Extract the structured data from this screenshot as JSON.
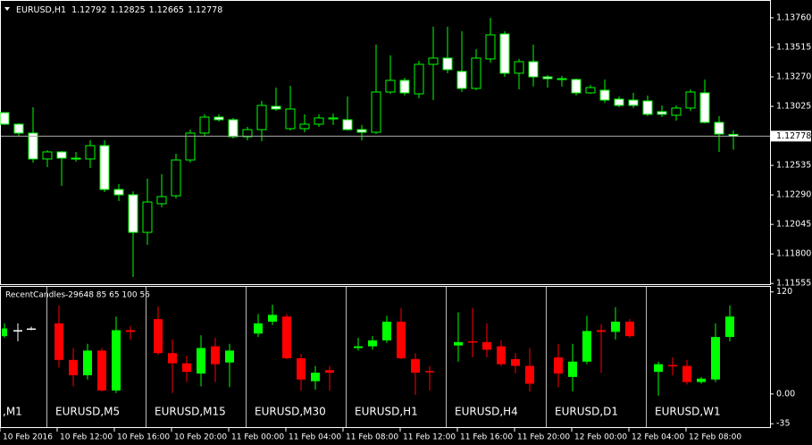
{
  "header": {
    "symbol": "EURUSD,H1",
    "values": [
      1.12792,
      1.12825,
      1.12665,
      1.12778
    ]
  },
  "chart_data": [
    {
      "type": "candlestick",
      "open": [
        1.12973,
        1.12877,
        1.12803,
        1.12588,
        1.12647,
        1.12588,
        1.12588,
        1.12699,
        1.12335,
        1.12291,
        1.11979,
        1.12217,
        1.12283,
        1.1258,
        1.12803,
        1.12936,
        1.12914,
        1.12773,
        1.12832,
        1.13025,
        1.1284,
        1.1284,
        1.12877,
        1.12921,
        1.12914,
        1.12832,
        1.1281,
        1.13144,
        1.13241,
        1.13129,
        1.13374,
        1.13426,
        1.13315,
        1.13174,
        1.13419,
        1.13626,
        1.133,
        1.13396,
        1.1327,
        1.13255,
        1.13248,
        1.13137,
        1.13159,
        1.13085,
        1.13077,
        1.1307,
        1.12981,
        1.12951,
        1.13011,
        1.13137,
        1.12892,
        1.12792
      ],
      "high": [
        1.12973,
        1.12884,
        1.13018,
        1.12662,
        1.12654,
        1.12647,
        1.12743,
        1.12743,
        1.1238,
        1.1232,
        1.12424,
        1.12462,
        1.12632,
        1.12832,
        1.12959,
        1.12959,
        1.12929,
        1.12855,
        1.1307,
        1.13181,
        1.13196,
        1.12959,
        1.12959,
        1.12966,
        1.13107,
        1.1287,
        1.13537,
        1.13448,
        1.13263,
        1.13404,
        1.13686,
        1.13686,
        1.13649,
        1.135,
        1.1376,
        1.13649,
        1.13419,
        1.13537,
        1.13285,
        1.13278,
        1.13255,
        1.13204,
        1.13248,
        1.13107,
        1.13137,
        1.13115,
        1.13033,
        1.13033,
        1.13166,
        1.13248,
        1.12944,
        1.12825
      ],
      "low": [
        1.1287,
        1.1278,
        1.12558,
        1.12521,
        1.12365,
        1.12566,
        1.12514,
        1.12313,
        1.12239,
        1.11608,
        1.11875,
        1.12187,
        1.12261,
        1.12558,
        1.1278,
        1.12899,
        1.12758,
        1.12743,
        1.12736,
        1.12988,
        1.12825,
        1.1281,
        1.12855,
        1.1287,
        1.12825,
        1.12743,
        1.12795,
        1.13129,
        1.13115,
        1.13092,
        1.13077,
        1.133,
        1.13144,
        1.13159,
        1.13389,
        1.1327,
        1.13166,
        1.13189,
        1.13181,
        1.13189,
        1.13115,
        1.13129,
        1.13055,
        1.13018,
        1.13011,
        1.12944,
        1.12936,
        1.12907,
        1.12988,
        1.12884,
        1.12647,
        1.12665
      ],
      "close": [
        1.12877,
        1.12803,
        1.12588,
        1.12647,
        1.12595,
        1.12595,
        1.12699,
        1.12335,
        1.12291,
        1.11979,
        1.12231,
        1.12276,
        1.1258,
        1.12803,
        1.12936,
        1.12914,
        1.12773,
        1.12832,
        1.13033,
        1.13003,
        1.13003,
        1.12877,
        1.12929,
        1.12929,
        1.12832,
        1.1281,
        1.13144,
        1.13241,
        1.13137,
        1.13374,
        1.13426,
        1.1333,
        1.13174,
        1.13426,
        1.13619,
        1.133,
        1.13396,
        1.1327,
        1.13255,
        1.13248,
        1.13137,
        1.13181,
        1.13077,
        1.13033,
        1.13033,
        1.12959,
        1.12959,
        1.13011,
        1.13144,
        1.12892,
        1.12795,
        1.12778
      ],
      "ylim": [
        1.11549,
        1.13908
      ],
      "yticks": [
        {
          "value": 1.1376,
          "label": "1.13760"
        },
        1.13515,
        {
          "value": 1.1327,
          "label": "1.13270"
        },
        1.13025,
        1.12535,
        {
          "value": 1.1229,
          "label": "1.12290"
        },
        1.12045,
        {
          "value": 1.118,
          "label": "1.11800"
        },
        1.11555
      ],
      "current_price": 1.12778,
      "xlabels": [
        "10 Feb 2016",
        "10 Feb 12:00",
        "10 Feb 16:00",
        "10 Feb 20:00",
        "11 Feb 00:00",
        "11 Feb 04:00",
        "11 Feb 08:00",
        "11 Feb 12:00",
        "11 Feb 16:00",
        "11 Feb 20:00",
        "12 Feb 00:00",
        "12 Feb 04:00",
        "12 Feb 08:00"
      ]
    },
    {
      "type": "candlestick",
      "title": "RecentCandles-29648 85 65 100 56",
      "ylim": [
        -39,
        127
      ],
      "yticks": [
        120,
        {
          "value": 0,
          "label": "0.00"
        },
        -35
      ],
      "panels": [
        {
          "name": ",M1",
          "colors": [
            "#00ff00",
            "#ffffff",
            "#ffffff"
          ],
          "open": [
            68,
            75,
            77
          ],
          "high": [
            83,
            83,
            79
          ],
          "low": [
            66,
            62,
            75
          ],
          "close": [
            77,
            75,
            77
          ]
        },
        {
          "name": "EURUSD,M5",
          "colors": [
            "#ff0000",
            "#ff0000",
            "#00ff00",
            "#ff0000",
            "#00ff00",
            "#ff0000"
          ],
          "open": [
            83,
            40,
            22,
            51,
            4,
            75
          ],
          "high": [
            104,
            54,
            59,
            54,
            91,
            80
          ],
          "low": [
            31,
            9,
            17,
            3,
            1,
            64
          ],
          "close": [
            40,
            22,
            51,
            4,
            75,
            73
          ]
        },
        {
          "name": "EURUSD,M15",
          "colors": [
            "#ff0000",
            "#ff0000",
            "#ff0000",
            "#00ff00",
            "#ff0000",
            "#00ff00"
          ],
          "open": [
            88,
            48,
            36,
            24,
            56,
            37
          ],
          "high": [
            103,
            64,
            45,
            69,
            66,
            59
          ],
          "low": [
            46,
            1,
            14,
            9,
            14,
            8
          ],
          "close": [
            48,
            36,
            26,
            54,
            35,
            51
          ]
        },
        {
          "name": "EURUSD,M30",
          "colors": [
            "#00ff00",
            "#00ff00",
            "#ff0000",
            "#ff0000",
            "#00ff00",
            "#ff0000"
          ],
          "open": [
            71,
            85,
            91,
            42,
            15,
            28
          ],
          "high": [
            94,
            105,
            94,
            47,
            33,
            33
          ],
          "low": [
            67,
            81,
            41,
            4,
            5,
            4
          ],
          "close": [
            83,
            93,
            42,
            17,
            25,
            25
          ]
        },
        {
          "name": "EURUSD,H1",
          "colors": [
            "#00ff00",
            "#00ff00",
            "#00ff00",
            "#ff0000",
            "#ff0000",
            "#ff0000"
          ],
          "open": [
            54,
            56,
            63,
            85,
            41,
            27
          ],
          "high": [
            66,
            68,
            92,
            101,
            48,
            33
          ],
          "low": [
            51,
            52,
            60,
            41,
            -1,
            4
          ],
          "close": [
            56,
            63,
            85,
            42,
            25,
            26
          ]
        },
        {
          "name": "EURUSD,H4",
          "colors": [
            "#00ff00",
            "#ff0000",
            "#ff0000",
            "#ff0000",
            "#ff0000",
            "#ff0000"
          ],
          "open": [
            57,
            62,
            61,
            56,
            41,
            33
          ],
          "high": [
            96,
            101,
            83,
            63,
            48,
            54
          ],
          "low": [
            38,
            43,
            43,
            33,
            24,
            3
          ],
          "close": [
            61,
            61,
            52,
            35,
            33,
            12
          ]
        },
        {
          "name": "EURUSD,D1",
          "colors": [
            "#ff0000",
            "#00ff00",
            "#00ff00",
            "#ff0000",
            "#00ff00",
            "#ff0000"
          ],
          "open": [
            43,
            20,
            38,
            75,
            73,
            85
          ],
          "high": [
            59,
            59,
            92,
            82,
            102,
            88
          ],
          "low": [
            8,
            3,
            35,
            25,
            64,
            66
          ],
          "close": [
            24,
            38,
            74,
            73,
            85,
            68
          ]
        },
        {
          "name": "EURUSD,W1",
          "colors": [
            "#00ff00",
            "#ff0000",
            "#ff0000",
            "#00ff00",
            "#00ff00",
            "#00ff00"
          ],
          "open": [
            26,
            34,
            33,
            14,
            17,
            67
          ],
          "high": [
            38,
            43,
            40,
            20,
            83,
            104
          ],
          "low": [
            -2,
            22,
            11,
            12,
            14,
            62
          ],
          "close": [
            35,
            33,
            14,
            18,
            67,
            91
          ]
        }
      ]
    }
  ]
}
